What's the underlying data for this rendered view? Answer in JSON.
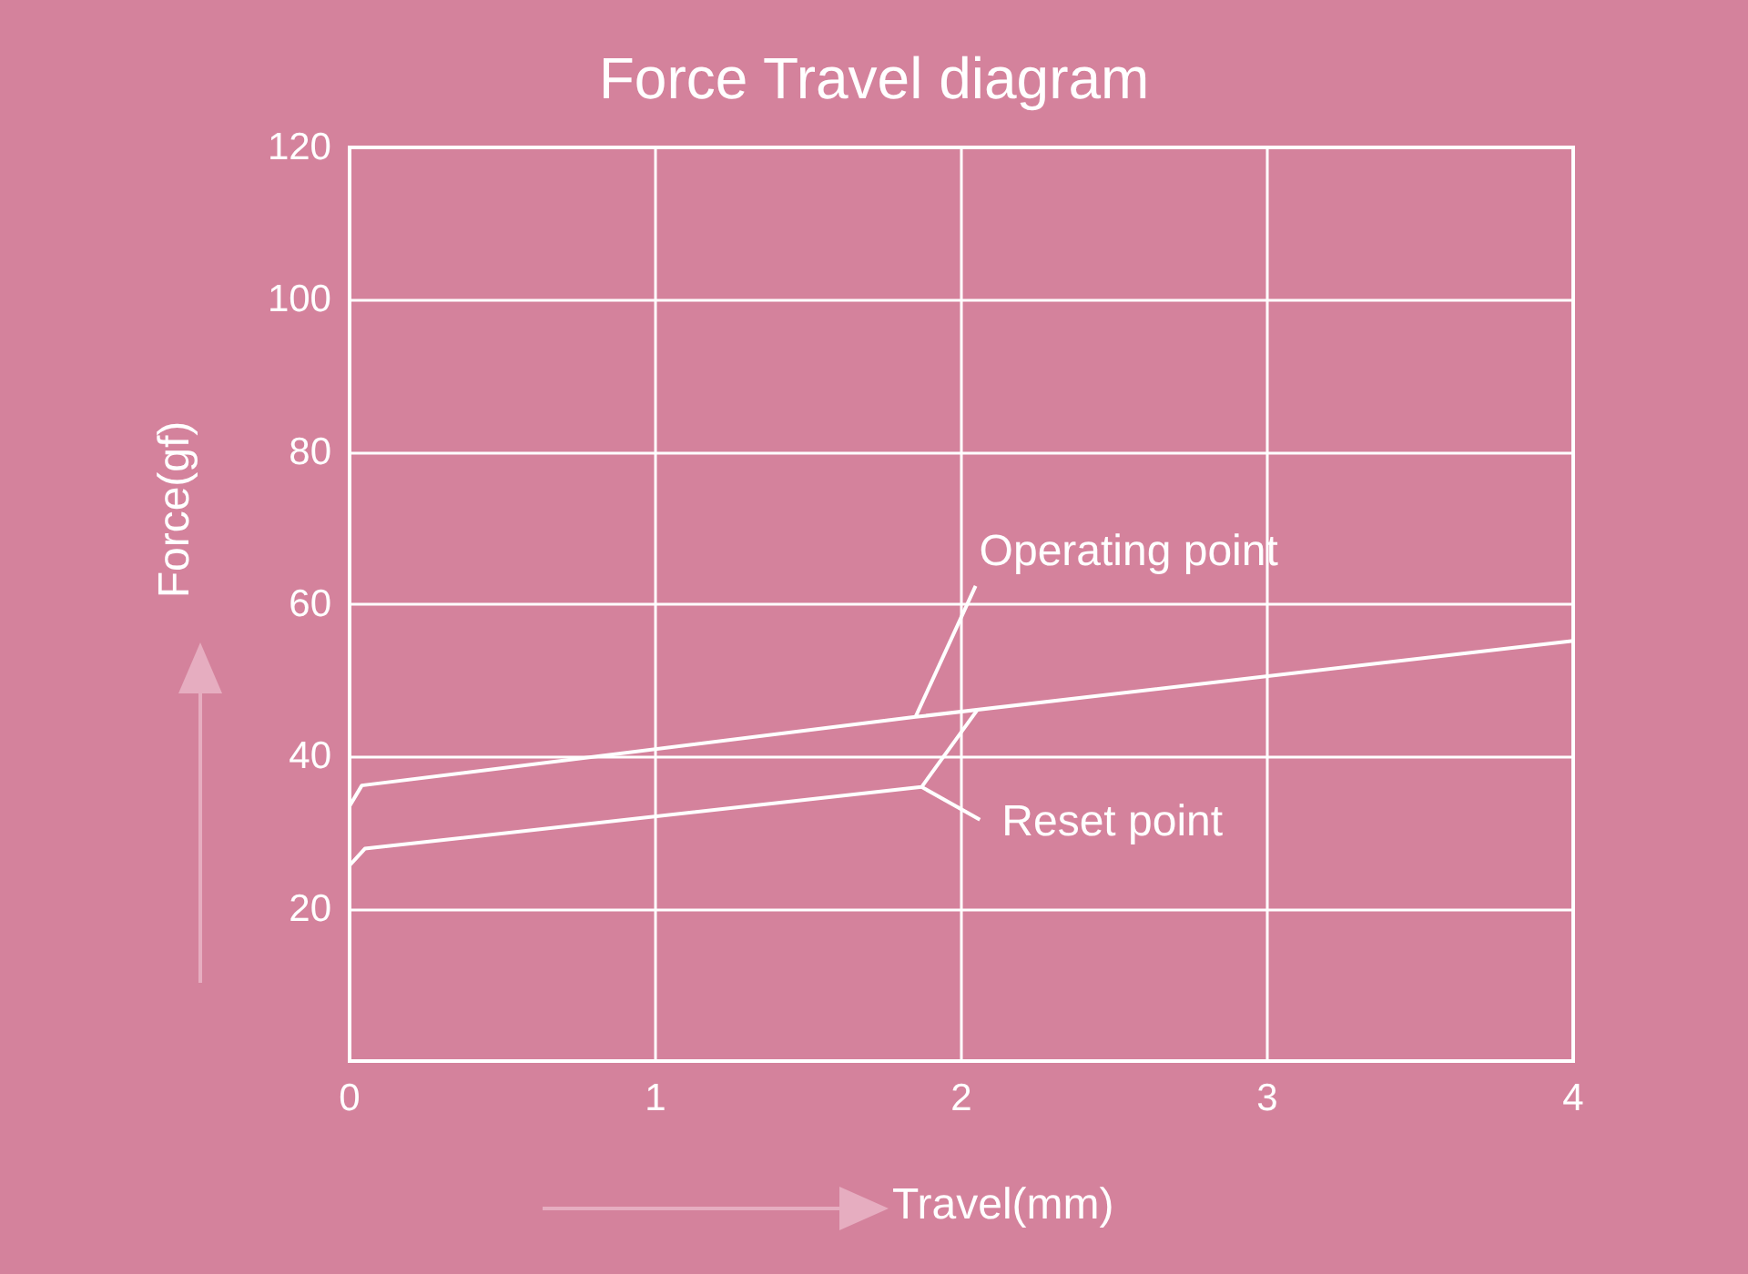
{
  "chart_data": {
    "type": "line",
    "title": "Force Travel diagram",
    "xlabel": "Travel(mm)",
    "ylabel": "Force(gf)",
    "xlim": [
      0,
      4
    ],
    "xticks": [
      0,
      1,
      2,
      3,
      4
    ],
    "ylim": [
      0,
      120
    ],
    "yticks": [
      {
        "value": 0,
        "label": null
      },
      20,
      40,
      60,
      80,
      100,
      120
    ],
    "grid": true,
    "marker": "none",
    "line_style": "solid",
    "series": [
      {
        "color": "#ffffff",
        "x": [
          0,
          0.04,
          1.85,
          4,
          4
        ],
        "values": [
          33.5,
          36.2,
          45.2,
          55.2,
          56.5
        ]
      },
      {
        "color": "#ffffff",
        "x": [
          0,
          0.05,
          1.87,
          2.05
        ],
        "values": [
          25.7,
          27.9,
          36,
          46
        ]
      }
    ],
    "annotations": [
      {
        "text": "Operating point",
        "x": 1.85,
        "y": 45.2
      },
      {
        "text": "Reset point",
        "x": 1.87,
        "y": 36
      }
    ]
  }
}
